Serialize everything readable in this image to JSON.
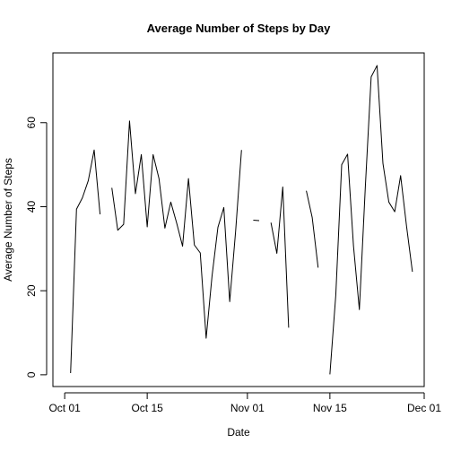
{
  "chart_data": {
    "type": "line",
    "title": "Average Number of Steps by Day",
    "xlabel": "Date",
    "ylabel": "Average Number of Steps",
    "x_start": "2012-10-01",
    "x_unit": "day",
    "xlim": [
      "2012-09-29",
      "2012-12-01"
    ],
    "ylim": [
      -2.8,
      76.6
    ],
    "x_ticks": [
      {
        "date": "2012-10-01",
        "label": "Oct 01"
      },
      {
        "date": "2012-10-15",
        "label": "Oct 15"
      },
      {
        "date": "2012-11-01",
        "label": "Nov 01"
      },
      {
        "date": "2012-11-15",
        "label": "Nov 15"
      },
      {
        "date": "2012-12-01",
        "label": "Dec 01"
      }
    ],
    "y_ticks": [
      0,
      20,
      40,
      60
    ],
    "grid": false,
    "line_color": "#000000",
    "series": [
      {
        "values": [
          null,
          0.4,
          39.4,
          42.1,
          46.2,
          53.5,
          38.2,
          null,
          44.5,
          34.4,
          35.8,
          60.4,
          43.1,
          52.4,
          35.2,
          52.4,
          46.7,
          34.9,
          41.1,
          36.1,
          30.6,
          46.7,
          30.9,
          29.0,
          8.7,
          23.5,
          35.1,
          39.8,
          17.4,
          34.1,
          53.5,
          null,
          36.8,
          36.7,
          null,
          36.2,
          28.9,
          44.7,
          11.2,
          null,
          null,
          43.8,
          37.4,
          25.5,
          null,
          0.1,
          19.0,
          50.0,
          52.5,
          30.7,
          15.5,
          44.4,
          70.9,
          73.6,
          50.3,
          41.1,
          38.8,
          47.4,
          35.4,
          24.5,
          null
        ]
      }
    ]
  }
}
